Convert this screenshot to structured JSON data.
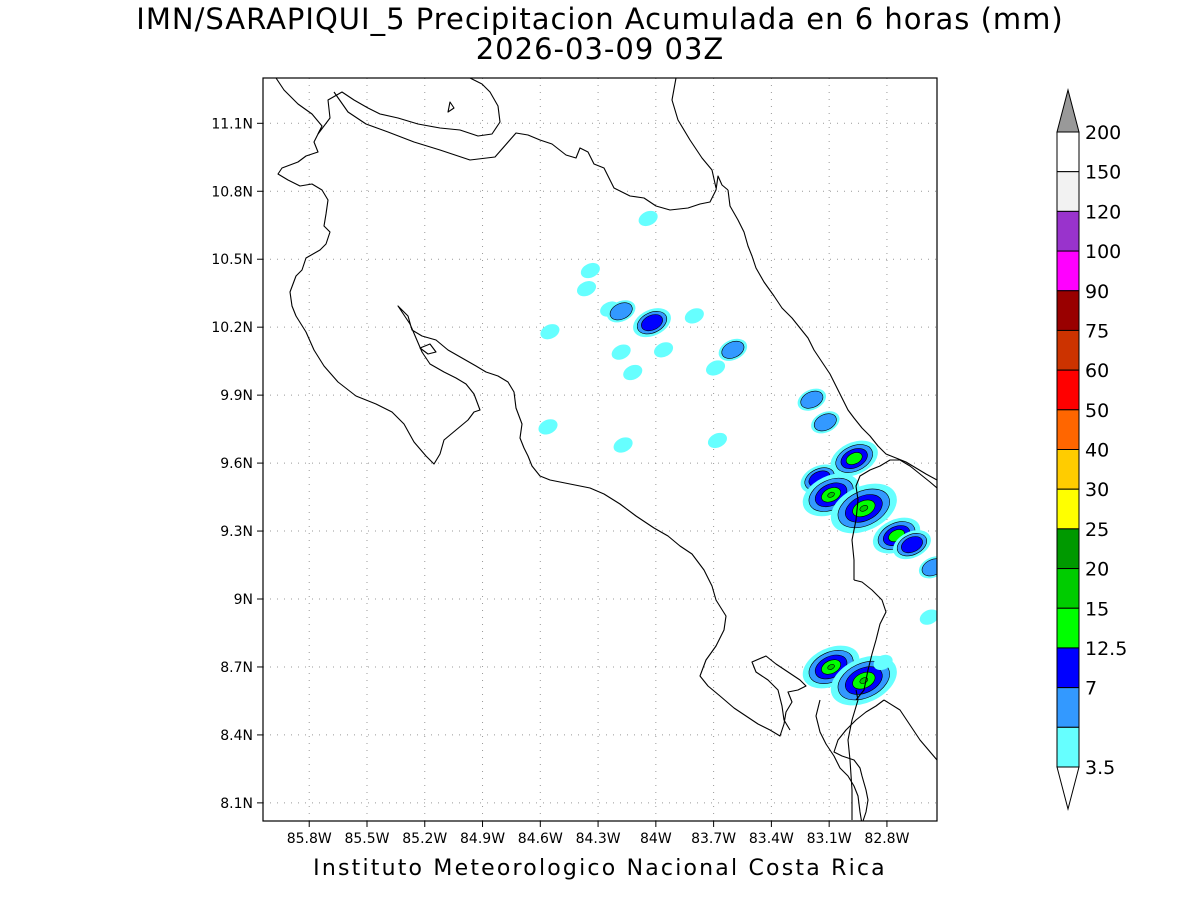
{
  "header": {
    "title": "IMN/SARAPIQUI_5 Precipitacion Acumulada en 6 horas (mm)",
    "subtitle": "2026-03-09 03Z"
  },
  "footer": {
    "text": "Instituto Meteorologico Nacional Costa Rica"
  },
  "map": {
    "lon_range": [
      -86.04,
      -82.54
    ],
    "lat_range": [
      8.02,
      11.3
    ],
    "x_tick_labels": [
      "85.8W",
      "85.5W",
      "85.2W",
      "84.9W",
      "84.6W",
      "84.3W",
      "84W",
      "83.7W",
      "83.4W",
      "83.1W",
      "82.8W"
    ],
    "x_tick_values": [
      -85.8,
      -85.5,
      -85.2,
      -84.9,
      -84.6,
      -84.3,
      -84.0,
      -83.7,
      -83.4,
      -83.1,
      -82.8
    ],
    "y_tick_labels": [
      "11.1N",
      "10.8N",
      "10.5N",
      "10.2N",
      "9.9N",
      "9.6N",
      "9.3N",
      "9N",
      "8.7N",
      "8.4N",
      "8.1N"
    ],
    "y_tick_values": [
      11.1,
      10.8,
      10.5,
      10.2,
      9.9,
      9.6,
      9.3,
      9.0,
      8.7,
      8.4,
      8.1
    ],
    "grid": "dotted",
    "coastline_color": "#000000"
  },
  "colorbar": {
    "labels": [
      "200",
      "150",
      "120",
      "100",
      "90",
      "75",
      "60",
      "50",
      "40",
      "30",
      "25",
      "20",
      "15",
      "12.5",
      "7",
      "3.5"
    ],
    "colors": [
      "#ffffff",
      "#f2f2f2",
      "#9933cc",
      "#ff00ff",
      "#990000",
      "#cc3300",
      "#ff0000",
      "#ff6600",
      "#ffcc00",
      "#ffff00",
      "#009900",
      "#00cc00",
      "#00ff00",
      "#0000ff",
      "#3399ff",
      "#66ffff"
    ],
    "over_color": "#999999",
    "under_color": "#ffffff"
  },
  "precip_areas": [
    {
      "lon": -84.04,
      "lat": 10.68,
      "level": "3.5"
    },
    {
      "lon": -84.34,
      "lat": 10.45,
      "level": "3.5"
    },
    {
      "lon": -84.36,
      "lat": 10.37,
      "level": "3.5"
    },
    {
      "lon": -84.55,
      "lat": 10.18,
      "level": "3.5"
    },
    {
      "lon": -84.24,
      "lat": 10.28,
      "level": "3.5"
    },
    {
      "lon": -84.18,
      "lat": 10.27,
      "level": "7"
    },
    {
      "lon": -84.02,
      "lat": 10.22,
      "level": "12.5"
    },
    {
      "lon": -83.8,
      "lat": 10.25,
      "level": "3.5"
    },
    {
      "lon": -84.18,
      "lat": 10.09,
      "level": "3.5"
    },
    {
      "lon": -83.96,
      "lat": 10.1,
      "level": "3.5"
    },
    {
      "lon": -83.6,
      "lat": 10.1,
      "level": "7"
    },
    {
      "lon": -83.69,
      "lat": 10.02,
      "level": "3.5"
    },
    {
      "lon": -84.12,
      "lat": 10.0,
      "level": "3.5"
    },
    {
      "lon": -83.19,
      "lat": 9.88,
      "level": "7"
    },
    {
      "lon": -83.12,
      "lat": 9.78,
      "level": "7"
    },
    {
      "lon": -83.68,
      "lat": 9.7,
      "level": "3.5"
    },
    {
      "lon": -84.56,
      "lat": 9.76,
      "level": "3.5"
    },
    {
      "lon": -84.17,
      "lat": 9.68,
      "level": "3.5"
    },
    {
      "lon": -82.97,
      "lat": 9.62,
      "level": "15"
    },
    {
      "lon": -83.15,
      "lat": 9.53,
      "level": "12.5"
    },
    {
      "lon": -83.09,
      "lat": 9.46,
      "level": "20"
    },
    {
      "lon": -82.92,
      "lat": 9.4,
      "level": "25"
    },
    {
      "lon": -82.75,
      "lat": 9.28,
      "level": "15"
    },
    {
      "lon": -82.67,
      "lat": 9.24,
      "level": "12.5"
    },
    {
      "lon": -82.56,
      "lat": 9.14,
      "level": "7"
    },
    {
      "lon": -82.58,
      "lat": 8.92,
      "level": "3.5"
    },
    {
      "lon": -83.09,
      "lat": 8.7,
      "level": "20"
    },
    {
      "lon": -82.92,
      "lat": 8.64,
      "level": "25"
    },
    {
      "lon": -82.82,
      "lat": 8.72,
      "level": "3.5"
    }
  ]
}
